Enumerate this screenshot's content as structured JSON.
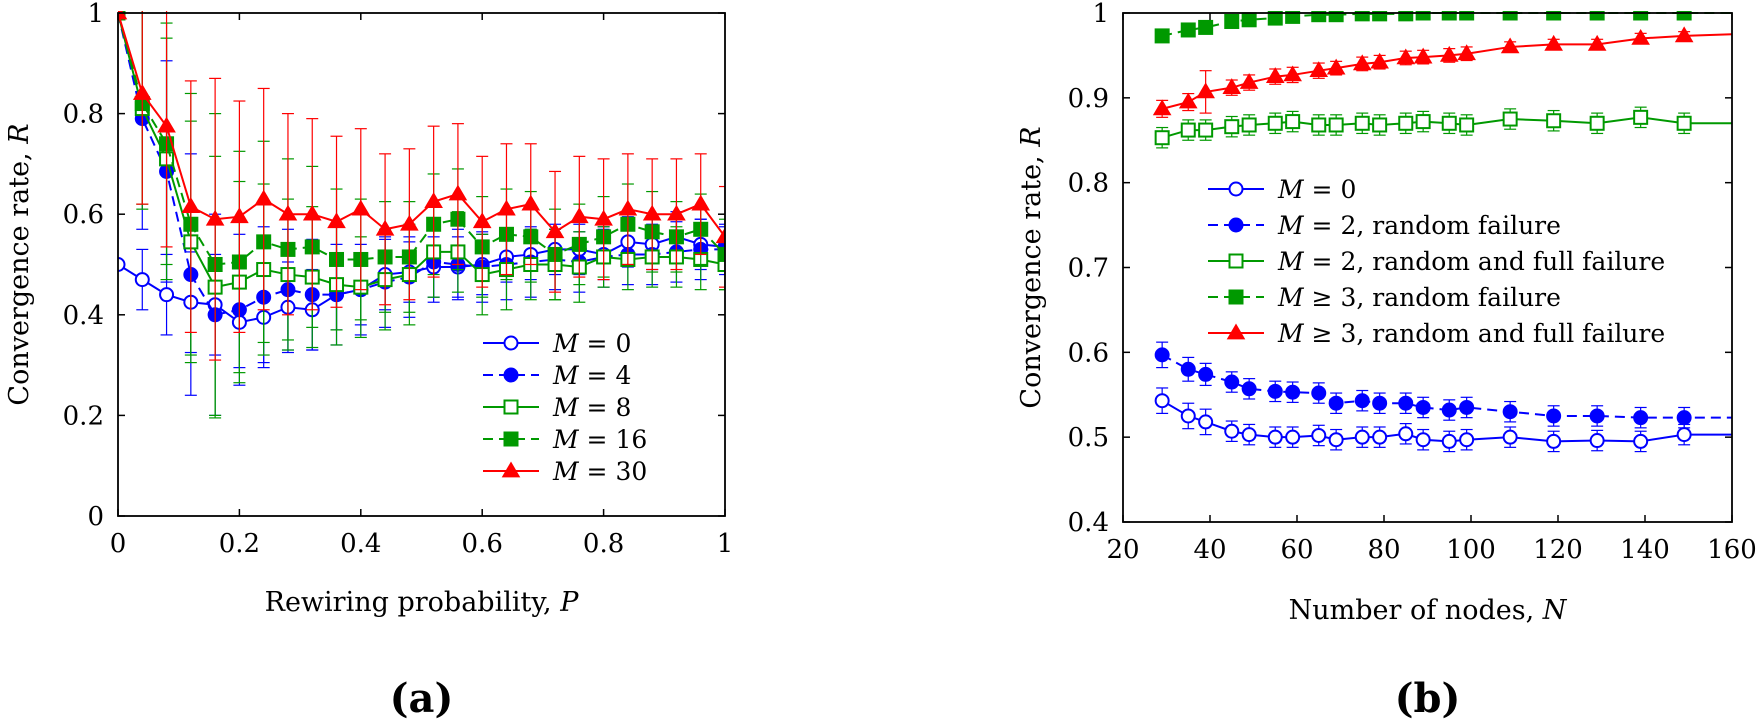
{
  "chart_data": [
    {
      "panel_label": "(a)",
      "type": "line",
      "xlabel_text": "Rewiring probability, ",
      "xlabel_var": "P",
      "ylabel_text": "Convergence rate, ",
      "ylabel_var": "R",
      "xlim": [
        0,
        1
      ],
      "ylim": [
        0,
        1
      ],
      "xticks": [
        0,
        0.2,
        0.4,
        0.6,
        0.8,
        1
      ],
      "xtick_labels": [
        "0",
        "0.2",
        "0.4",
        "0.6",
        "0.8",
        "1"
      ],
      "yticks": [
        0,
        0.2,
        0.4,
        0.6,
        0.8,
        1
      ],
      "ytick_labels": [
        "0",
        "0.2",
        "0.4",
        "0.6",
        "0.8",
        "1"
      ],
      "legend_position": "bottom-right",
      "x": [
        0,
        0.04,
        0.08,
        0.12,
        0.16,
        0.2,
        0.24,
        0.28,
        0.32,
        0.36,
        0.4,
        0.44,
        0.48,
        0.52,
        0.56,
        0.6,
        0.64,
        0.68,
        0.72,
        0.76,
        0.8,
        0.84,
        0.88,
        0.92,
        0.96,
        1
      ],
      "series": [
        {
          "legend_var": "M",
          "legend_rest": " = 0",
          "color": "#0000ff",
          "marker": "circle-open",
          "dash": "solid",
          "values": [
            0.5,
            0.47,
            0.44,
            0.425,
            0.42,
            0.385,
            0.395,
            0.415,
            0.41,
            0.44,
            0.45,
            0.48,
            0.485,
            0.495,
            0.495,
            0.5,
            0.515,
            0.52,
            0.53,
            0.53,
            0.52,
            0.545,
            0.54,
            0.555,
            0.54,
            0.535
          ],
          "err": [
            0.0,
            0.06,
            0.08,
            0.1,
            0.1,
            0.09,
            0.09,
            0.09,
            0.08,
            0.07,
            0.07,
            0.07,
            0.06,
            0.06,
            0.06,
            0.06,
            0.05,
            0.05,
            0.05,
            0.05,
            0.05,
            0.05,
            0.05,
            0.05,
            0.05,
            0.04
          ]
        },
        {
          "legend_var": "M",
          "legend_rest": " = 4",
          "color": "#0000ff",
          "marker": "circle-filled",
          "dash": "dashed",
          "values": [
            1.0,
            0.79,
            0.685,
            0.48,
            0.4,
            0.41,
            0.435,
            0.45,
            0.44,
            0.44,
            0.45,
            0.465,
            0.475,
            0.505,
            0.5,
            0.495,
            0.5,
            0.505,
            0.51,
            0.505,
            0.515,
            0.52,
            0.52,
            0.525,
            0.53,
            0.53
          ],
          "err": [
            0.0,
            0.22,
            0.22,
            0.24,
            0.2,
            0.15,
            0.14,
            0.12,
            0.11,
            0.1,
            0.09,
            0.09,
            0.08,
            0.08,
            0.07,
            0.07,
            0.07,
            0.07,
            0.06,
            0.06,
            0.06,
            0.06,
            0.06,
            0.06,
            0.06,
            0.05
          ]
        },
        {
          "legend_var": "M",
          "legend_rest": " = 8",
          "color": "#009900",
          "marker": "square-open",
          "dash": "solid",
          "values": [
            1.0,
            0.81,
            0.71,
            0.545,
            0.455,
            0.465,
            0.49,
            0.48,
            0.475,
            0.46,
            0.455,
            0.47,
            0.48,
            0.525,
            0.525,
            0.48,
            0.49,
            0.5,
            0.5,
            0.495,
            0.515,
            0.51,
            0.515,
            0.515,
            0.51,
            0.5
          ],
          "err": [
            0.0,
            0.2,
            0.24,
            0.24,
            0.26,
            0.2,
            0.17,
            0.15,
            0.14,
            0.12,
            0.1,
            0.1,
            0.1,
            0.09,
            0.08,
            0.08,
            0.08,
            0.07,
            0.07,
            0.07,
            0.06,
            0.06,
            0.06,
            0.06,
            0.06,
            0.05
          ]
        },
        {
          "legend_var": "M",
          "legend_rest": " = 16",
          "color": "#009900",
          "marker": "square-filled",
          "dash": "dashed",
          "values": [
            1.0,
            0.82,
            0.74,
            0.58,
            0.5,
            0.505,
            0.545,
            0.53,
            0.535,
            0.51,
            0.51,
            0.515,
            0.515,
            0.58,
            0.59,
            0.535,
            0.56,
            0.555,
            0.52,
            0.54,
            0.555,
            0.58,
            0.565,
            0.555,
            0.57,
            0.52
          ],
          "err": [
            0.0,
            0.2,
            0.24,
            0.26,
            0.3,
            0.22,
            0.2,
            0.18,
            0.16,
            0.14,
            0.12,
            0.11,
            0.11,
            0.1,
            0.1,
            0.1,
            0.09,
            0.09,
            0.09,
            0.08,
            0.08,
            0.08,
            0.08,
            0.07,
            0.07,
            0.07
          ]
        },
        {
          "legend_var": "M",
          "legend_rest": " = 30",
          "color": "#ff0000",
          "marker": "triangle-filled",
          "dash": "solid",
          "values": [
            1.0,
            0.84,
            0.775,
            0.615,
            0.59,
            0.595,
            0.63,
            0.6,
            0.6,
            0.585,
            0.61,
            0.57,
            0.58,
            0.625,
            0.64,
            0.585,
            0.61,
            0.62,
            0.565,
            0.595,
            0.59,
            0.61,
            0.6,
            0.6,
            0.62,
            0.555
          ],
          "err": [
            0.0,
            0.22,
            0.24,
            0.25,
            0.28,
            0.23,
            0.22,
            0.2,
            0.19,
            0.17,
            0.16,
            0.15,
            0.15,
            0.15,
            0.14,
            0.13,
            0.13,
            0.12,
            0.12,
            0.12,
            0.12,
            0.11,
            0.11,
            0.11,
            0.1,
            0.1
          ]
        }
      ]
    },
    {
      "panel_label": "(b)",
      "type": "line",
      "xlabel_text": "Number of nodes, ",
      "xlabel_var": "N",
      "ylabel_text": "Convergence rate, ",
      "ylabel_var": "R",
      "xlim": [
        20,
        160
      ],
      "ylim": [
        0.4,
        1.0
      ],
      "xticks": [
        20,
        40,
        60,
        80,
        100,
        120,
        140,
        160
      ],
      "xtick_labels": [
        "20",
        "40",
        "60",
        "80",
        "100",
        "120",
        "140",
        "160"
      ],
      "yticks": [
        0.4,
        0.5,
        0.6,
        0.7,
        0.8,
        0.9,
        1.0
      ],
      "ytick_labels": [
        "0.4",
        "0.5",
        "0.6",
        "0.7",
        "0.8",
        "0.9",
        "1"
      ],
      "legend_position": "middle-left",
      "x": [
        29,
        35,
        39,
        45,
        49,
        55,
        59,
        65,
        69,
        75,
        79,
        85,
        89,
        95,
        99,
        109,
        119,
        129,
        139,
        149,
        160
      ],
      "series": [
        {
          "legend_var": "M",
          "legend_rest": " = 0",
          "color": "#0000ff",
          "marker": "circle-open",
          "dash": "solid",
          "values": [
            0.543,
            0.525,
            0.518,
            0.507,
            0.503,
            0.5,
            0.5,
            0.502,
            0.497,
            0.5,
            0.5,
            0.504,
            0.497,
            0.495,
            0.497,
            0.5,
            0.495,
            0.496,
            0.495,
            0.503,
            0.503
          ],
          "err": [
            0.015,
            0.015,
            0.015,
            0.012,
            0.012,
            0.012,
            0.012,
            0.012,
            0.012,
            0.012,
            0.012,
            0.012,
            0.012,
            0.012,
            0.012,
            0.012,
            0.012,
            0.012,
            0.012,
            0.012,
            0
          ],
          "marker_mask": [
            1,
            1,
            1,
            1,
            1,
            1,
            1,
            1,
            1,
            1,
            1,
            1,
            1,
            1,
            1,
            1,
            1,
            1,
            1,
            1,
            0
          ]
        },
        {
          "legend_var": "M",
          "legend_rest": " = 2, random failure",
          "color": "#0000ff",
          "marker": "circle-filled",
          "dash": "dashed",
          "values": [
            0.597,
            0.58,
            0.574,
            0.565,
            0.557,
            0.554,
            0.553,
            0.552,
            0.54,
            0.543,
            0.54,
            0.54,
            0.535,
            0.532,
            0.535,
            0.53,
            0.525,
            0.525,
            0.523,
            0.523,
            0.523
          ],
          "err": [
            0.015,
            0.014,
            0.013,
            0.012,
            0.012,
            0.012,
            0.012,
            0.012,
            0.012,
            0.012,
            0.012,
            0.012,
            0.012,
            0.012,
            0.012,
            0.012,
            0.012,
            0.012,
            0.012,
            0.012,
            0
          ],
          "marker_mask": [
            1,
            1,
            1,
            1,
            1,
            1,
            1,
            1,
            1,
            1,
            1,
            1,
            1,
            1,
            1,
            1,
            1,
            1,
            1,
            1,
            0
          ]
        },
        {
          "legend_var": "M",
          "legend_rest": " = 2, random and full failure",
          "color": "#009900",
          "marker": "square-open",
          "dash": "solid",
          "values": [
            0.853,
            0.862,
            0.862,
            0.866,
            0.868,
            0.87,
            0.872,
            0.868,
            0.868,
            0.87,
            0.868,
            0.87,
            0.872,
            0.87,
            0.868,
            0.875,
            0.873,
            0.87,
            0.877,
            0.87,
            0.87
          ],
          "err": [
            0.012,
            0.012,
            0.012,
            0.012,
            0.012,
            0.012,
            0.012,
            0.012,
            0.012,
            0.012,
            0.012,
            0.012,
            0.012,
            0.012,
            0.012,
            0.012,
            0.012,
            0.012,
            0.012,
            0.012,
            0
          ],
          "marker_mask": [
            1,
            1,
            1,
            1,
            1,
            1,
            1,
            1,
            1,
            1,
            1,
            1,
            1,
            1,
            1,
            1,
            1,
            1,
            1,
            1,
            0
          ]
        },
        {
          "legend_var": "M",
          "legend_rest": " ≥ 3, random failure",
          "color": "#009900",
          "marker": "square-filled",
          "dash": "dashed",
          "values": [
            0.973,
            0.98,
            0.983,
            0.99,
            0.992,
            0.994,
            0.996,
            0.998,
            0.998,
            0.999,
            0.999,
            0.999,
            1.0,
            1.0,
            1.0,
            1.0,
            1.0,
            1.0,
            1.0,
            1.0,
            1.0
          ],
          "err": [
            0.004,
            0.004,
            0.003,
            0.003,
            0.002,
            0.002,
            0.002,
            0.001,
            0.001,
            0.001,
            0.001,
            0.001,
            0,
            0,
            0,
            0,
            0,
            0,
            0,
            0,
            0
          ],
          "marker_mask": [
            1,
            1,
            1,
            1,
            1,
            1,
            1,
            1,
            1,
            1,
            1,
            1,
            1,
            1,
            1,
            1,
            1,
            1,
            1,
            1,
            0
          ]
        },
        {
          "legend_var": "M",
          "legend_rest": " ≥ 3, random and full failure",
          "color": "#ff0000",
          "marker": "triangle-filled",
          "dash": "solid",
          "values": [
            0.887,
            0.895,
            0.907,
            0.912,
            0.918,
            0.925,
            0.927,
            0.932,
            0.935,
            0.94,
            0.942,
            0.947,
            0.948,
            0.95,
            0.952,
            0.96,
            0.963,
            0.963,
            0.97,
            0.973,
            0.975
          ],
          "err": [
            0.01,
            0.01,
            0.025,
            0.009,
            0.009,
            0.009,
            0.009,
            0.009,
            0.008,
            0.008,
            0.008,
            0.008,
            0.008,
            0.008,
            0.008,
            0.006,
            0.006,
            0.006,
            0.006,
            0.005,
            0
          ],
          "marker_mask": [
            1,
            1,
            1,
            1,
            1,
            1,
            1,
            1,
            1,
            1,
            1,
            1,
            1,
            1,
            1,
            1,
            1,
            1,
            1,
            1,
            0
          ]
        }
      ]
    }
  ]
}
